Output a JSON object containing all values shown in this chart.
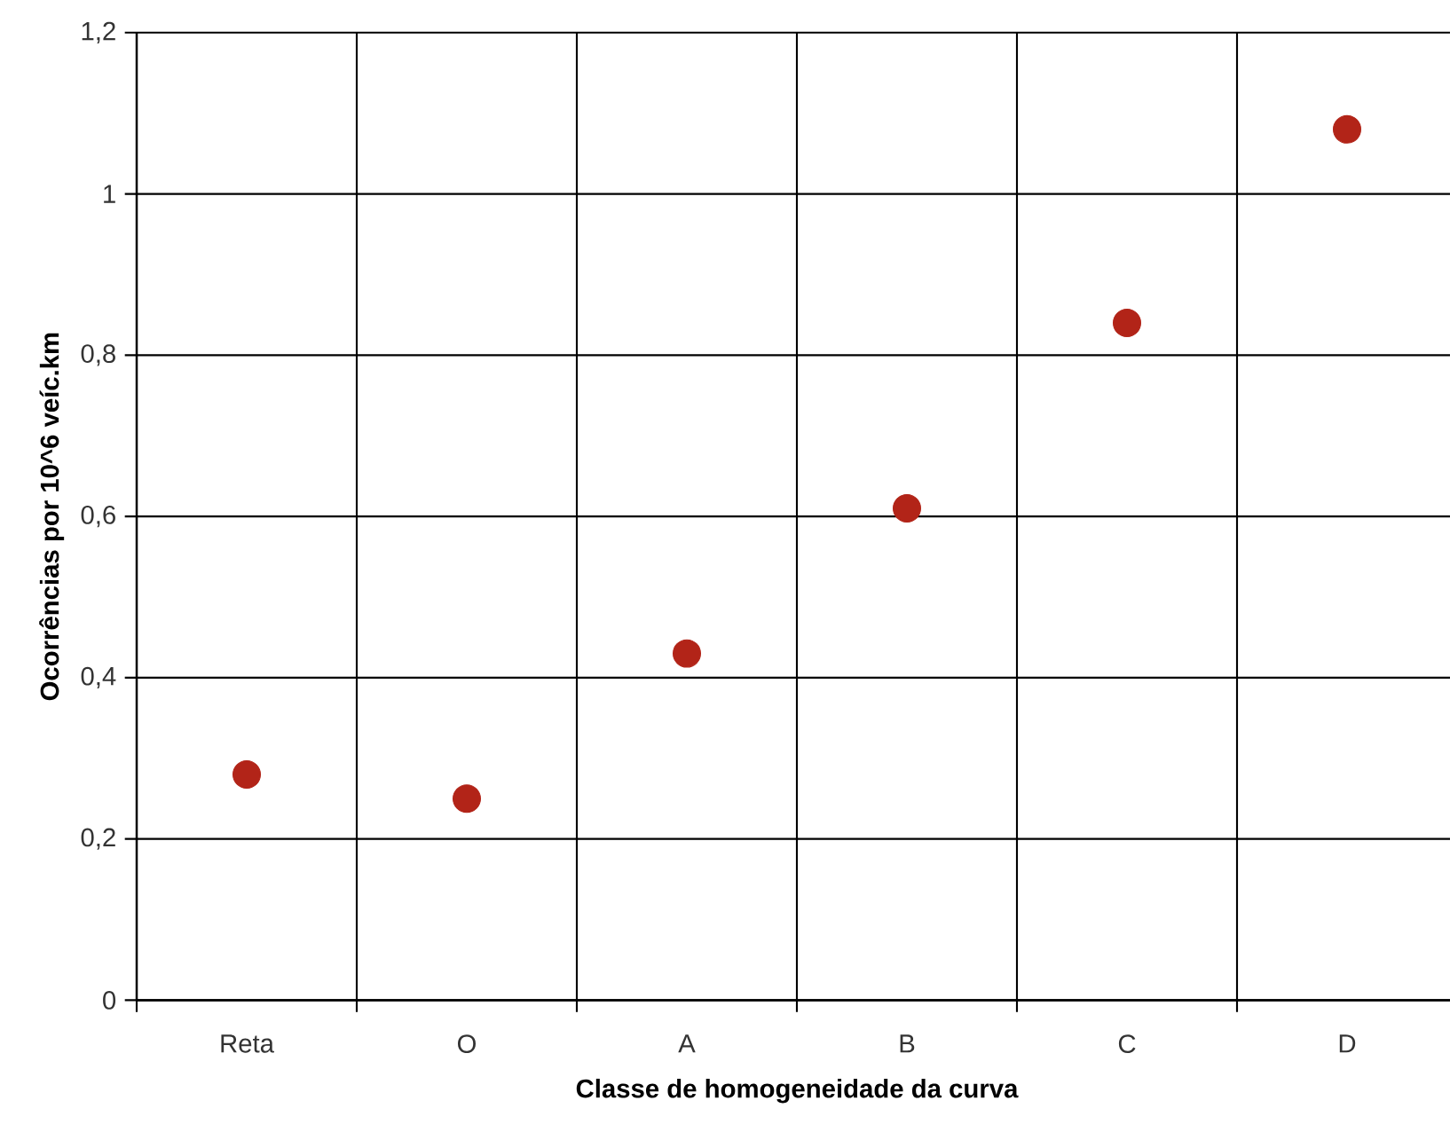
{
  "chart_data": {
    "type": "scatter",
    "xlabel": "Classe de homogeneidade da curva",
    "ylabel": "Ocorrências por 10^6 veíc.km",
    "categories": [
      "Reta",
      "O",
      "A",
      "B",
      "C",
      "D"
    ],
    "series": [
      {
        "color": "#b22418",
        "values": [
          0.28,
          0.25,
          0.43,
          0.61,
          0.84,
          1.08
        ]
      }
    ],
    "ylim": [
      0,
      1.2
    ],
    "yticks": [
      0,
      {
        "value": 0.2,
        "label": "0,2"
      },
      {
        "value": 0.4,
        "label": "0,4"
      },
      {
        "value": 0.6,
        "label": "0,6"
      },
      {
        "value": 0.8,
        "label": "0,8"
      },
      1,
      {
        "value": 1.2,
        "label": "1,2"
      }
    ],
    "grid": true,
    "marker": "circle"
  }
}
